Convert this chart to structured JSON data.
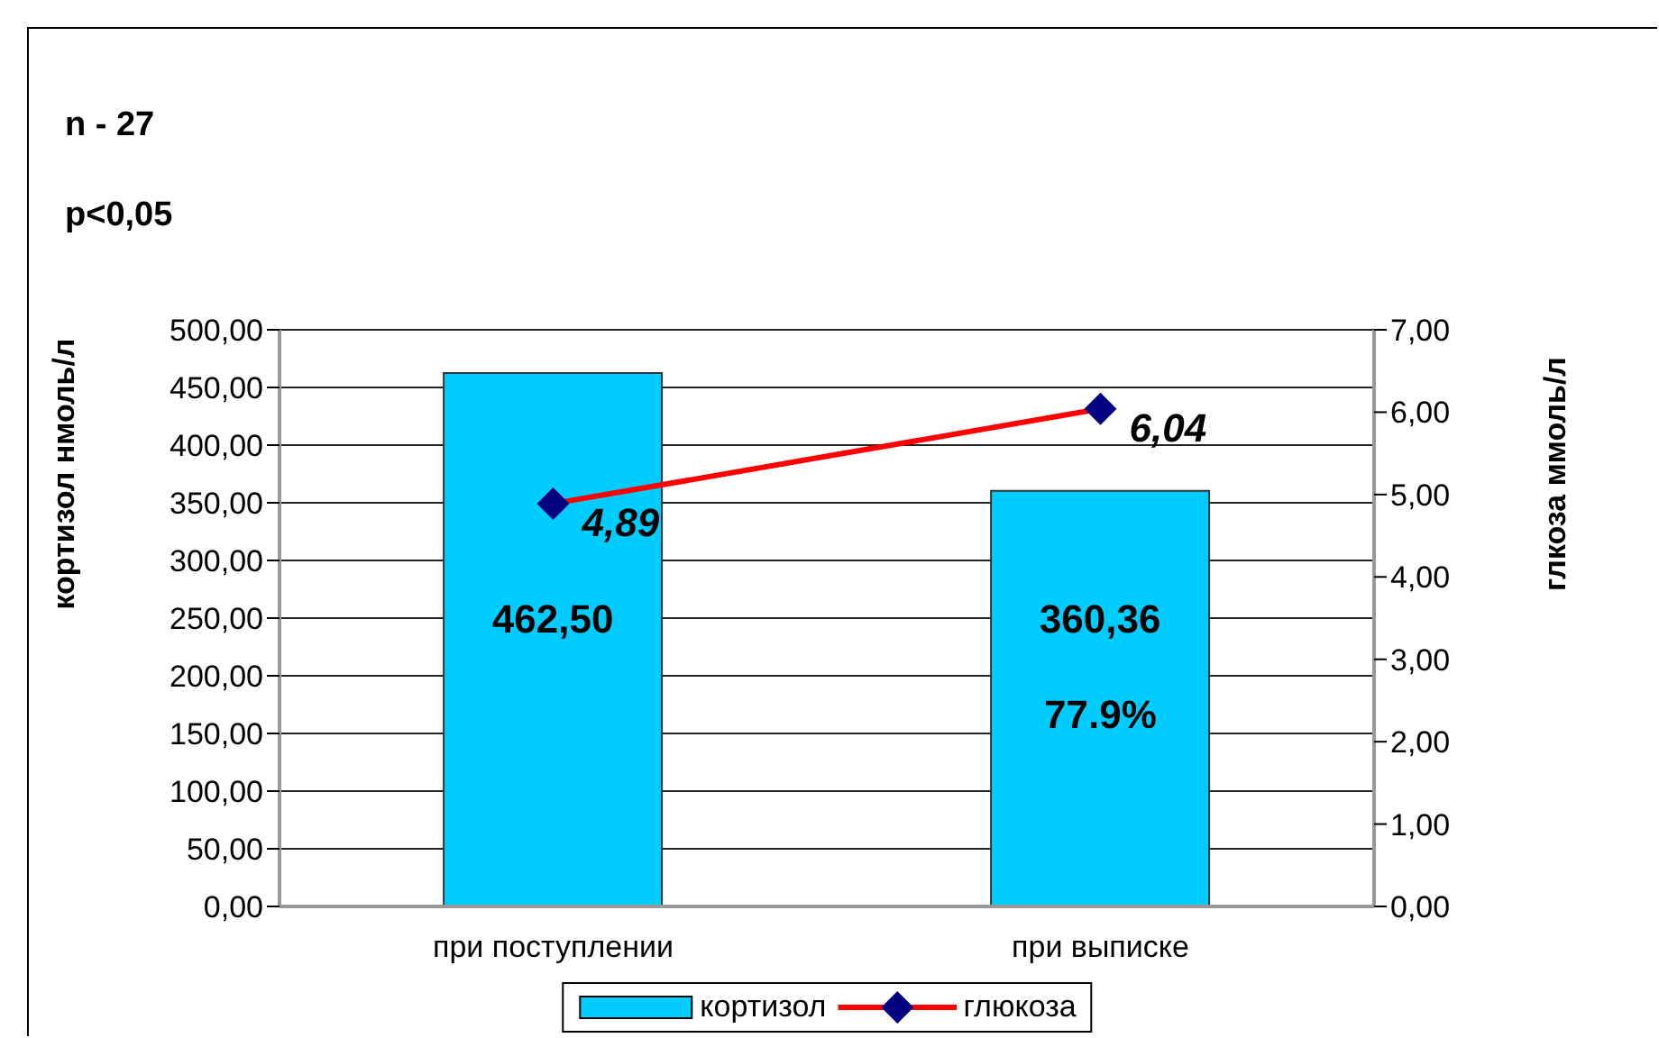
{
  "chart_data": {
    "type": "bar",
    "annotations": [
      "n - 27",
      "p<0,05",
      "77.9%"
    ],
    "ylabel": "кортизол нмоль/л",
    "y2label": "глкоза ммоль/л",
    "categories": [
      "при поступлении",
      "при выписке"
    ],
    "series": [
      {
        "name": "кортизол",
        "color": "#00ccff",
        "values": [
          462.5,
          360.36
        ],
        "value_labels": [
          "462,50",
          "360,36"
        ]
      },
      {
        "name": "глюкоза",
        "type": "line",
        "axis": "y2",
        "color": "#ff0000",
        "colors": [
          "#000080",
          "#000080"
        ],
        "values": [
          4.89,
          6.04
        ],
        "value_labels": [
          "4,89",
          "6,04"
        ]
      }
    ],
    "ylim": [
      0,
      500
    ],
    "yticks": [
      {
        "value": 0,
        "label": "0,00"
      },
      {
        "value": 50,
        "label": "50,00"
      },
      {
        "value": 100,
        "label": "100,00"
      },
      {
        "value": 150,
        "label": "150,00"
      },
      {
        "value": 200,
        "label": "200,00"
      },
      {
        "value": 250,
        "label": "250,00"
      },
      {
        "value": 300,
        "label": "300,00"
      },
      {
        "value": 350,
        "label": "350,00"
      },
      {
        "value": 400,
        "label": "400,00"
      },
      {
        "value": 450,
        "label": "450,00"
      },
      {
        "value": 500,
        "label": "500,00"
      }
    ],
    "y2lim": [
      0,
      7
    ],
    "y2ticks": [
      {
        "value": 0,
        "label": "0,00"
      },
      {
        "value": 1,
        "label": "1,00"
      },
      {
        "value": 2,
        "label": "2,00"
      },
      {
        "value": 3,
        "label": "3,00"
      },
      {
        "value": 4,
        "label": "4,00"
      },
      {
        "value": 5,
        "label": "5,00"
      },
      {
        "value": 6,
        "label": "6,00"
      },
      {
        "value": 7,
        "label": "7,00"
      }
    ],
    "grid": "y",
    "legend": "bottom",
    "marker": "diamond"
  }
}
